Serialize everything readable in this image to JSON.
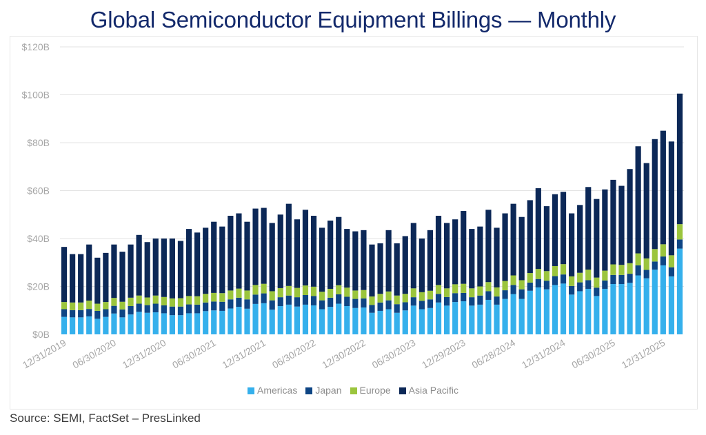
{
  "chart_data": {
    "type": "bar",
    "stacked": true,
    "title": "Global Semiconductor Equipment Billings — Monthly",
    "xlabel": "",
    "ylabel": "",
    "ylim": [
      0,
      120
    ],
    "yticks": [
      0,
      20,
      40,
      60,
      80,
      100,
      120
    ],
    "ytick_labels": [
      "$0B",
      "$20B",
      "$40B",
      "$60B",
      "$80B",
      "$100B",
      "$120B"
    ],
    "grid": true,
    "legend_position": "bottom",
    "xtick_labels": [
      {
        "index": 0,
        "label": "12/31/2019"
      },
      {
        "index": 6,
        "label": "06/30/2020"
      },
      {
        "index": 12,
        "label": "12/31/2020"
      },
      {
        "index": 18,
        "label": "06/30/2021"
      },
      {
        "index": 24,
        "label": "12/31/2021"
      },
      {
        "index": 30,
        "label": "06/30/2022"
      },
      {
        "index": 36,
        "label": "12/30/2022"
      },
      {
        "index": 42,
        "label": "06/30/2023"
      },
      {
        "index": 48,
        "label": "12/29/2023"
      },
      {
        "index": 54,
        "label": "06/28/2024"
      },
      {
        "index": 60,
        "label": "12/31/2024"
      },
      {
        "index": 66,
        "label": "06/30/2025"
      },
      {
        "index": 72,
        "label": "12/31/2025"
      }
    ],
    "units": "$B",
    "series": [
      {
        "name": "Americas",
        "color": "#35b0ec",
        "values": [
          7.3,
          7.1,
          7.1,
          7.5,
          6.5,
          7.3,
          8.7,
          7.1,
          8.3,
          9.4,
          9.0,
          9.2,
          8.8,
          8.0,
          8.0,
          8.8,
          8.8,
          9.7,
          10.0,
          9.8,
          10.8,
          11.5,
          10.7,
          12.7,
          13.0,
          10.3,
          11.8,
          12.4,
          11.6,
          12.4,
          12.1,
          10.5,
          11.5,
          12.8,
          11.8,
          11.0,
          11.2,
          9.0,
          9.8,
          10.5,
          9.0,
          10.0,
          12.0,
          10.5,
          11.0,
          13.3,
          12.0,
          13.5,
          13.8,
          12.0,
          12.4,
          14.4,
          12.4,
          14.8,
          16.8,
          14.8,
          18.2,
          19.6,
          18.8,
          20.6,
          21.2,
          16.6,
          18.0,
          19.0,
          16.0,
          19.0,
          21.0,
          21.0,
          21.5,
          24.6,
          23.4,
          27.0,
          28.8,
          24.2,
          35.8
        ]
      },
      {
        "name": "Japan",
        "color": "#0e4584",
        "values": [
          3.2,
          3.0,
          3.0,
          3.1,
          3.3,
          3.2,
          3.2,
          3.3,
          3.5,
          3.4,
          3.2,
          3.6,
          3.3,
          3.6,
          3.6,
          3.7,
          3.6,
          3.6,
          3.7,
          3.8,
          3.8,
          3.8,
          3.9,
          3.9,
          4.1,
          3.9,
          3.7,
          3.8,
          3.9,
          4.0,
          3.9,
          3.7,
          3.8,
          3.9,
          3.9,
          3.8,
          3.8,
          3.3,
          3.5,
          3.7,
          3.6,
          3.4,
          3.5,
          3.5,
          3.6,
          3.6,
          3.6,
          3.7,
          3.5,
          3.5,
          3.8,
          3.6,
          3.4,
          3.6,
          3.8,
          4.0,
          3.4,
          3.5,
          3.6,
          3.7,
          3.8,
          3.6,
          3.7,
          3.6,
          3.5,
          3.5,
          3.8,
          3.8,
          3.8,
          4.2,
          3.5,
          3.4,
          3.7,
          3.8,
          3.8
        ]
      },
      {
        "name": "Europe",
        "color": "#9bc53d",
        "values": [
          3.0,
          3.2,
          3.2,
          3.5,
          3.0,
          3.0,
          3.3,
          3.2,
          3.5,
          3.4,
          3.2,
          3.4,
          3.5,
          3.4,
          3.5,
          3.5,
          3.5,
          3.6,
          3.6,
          3.6,
          3.7,
          3.8,
          3.7,
          4.0,
          4.0,
          3.8,
          3.8,
          4.0,
          3.9,
          4.0,
          3.9,
          3.6,
          3.7,
          3.8,
          3.8,
          3.5,
          3.5,
          3.5,
          3.6,
          3.7,
          3.6,
          3.5,
          3.7,
          3.6,
          3.6,
          3.7,
          3.6,
          3.7,
          3.8,
          3.7,
          3.8,
          3.8,
          3.8,
          3.9,
          4.0,
          3.8,
          4.0,
          4.2,
          4.0,
          4.2,
          4.3,
          4.0,
          4.0,
          4.4,
          4.2,
          4.1,
          4.4,
          4.2,
          4.4,
          5.0,
          4.8,
          5.2,
          5.1,
          5.0,
          6.4
        ]
      },
      {
        "name": "Asia Pacific",
        "color": "#0c2857",
        "values": [
          23.0,
          20.2,
          20.2,
          23.4,
          19.2,
          20.5,
          22.3,
          20.9,
          22.2,
          25.3,
          23.1,
          23.8,
          24.4,
          25.0,
          23.9,
          28.0,
          26.6,
          27.6,
          29.7,
          27.8,
          31.2,
          31.4,
          28.7,
          31.9,
          31.7,
          28.5,
          30.7,
          34.3,
          28.6,
          31.6,
          29.6,
          26.7,
          28.5,
          28.5,
          24.5,
          24.7,
          25.0,
          21.7,
          21.1,
          25.6,
          21.8,
          24.1,
          27.3,
          22.4,
          25.3,
          28.9,
          27.3,
          27.1,
          30.4,
          24.8,
          25.0,
          30.2,
          24.9,
          28.2,
          29.9,
          26.4,
          30.4,
          33.7,
          27.1,
          30.0,
          30.2,
          26.3,
          28.3,
          34.5,
          32.8,
          33.9,
          35.3,
          33.0,
          39.3,
          44.7,
          39.8,
          45.9,
          47.4,
          47.5,
          54.5
        ]
      }
    ]
  },
  "source": "Source: SEMI, FactSet – PresLinked"
}
